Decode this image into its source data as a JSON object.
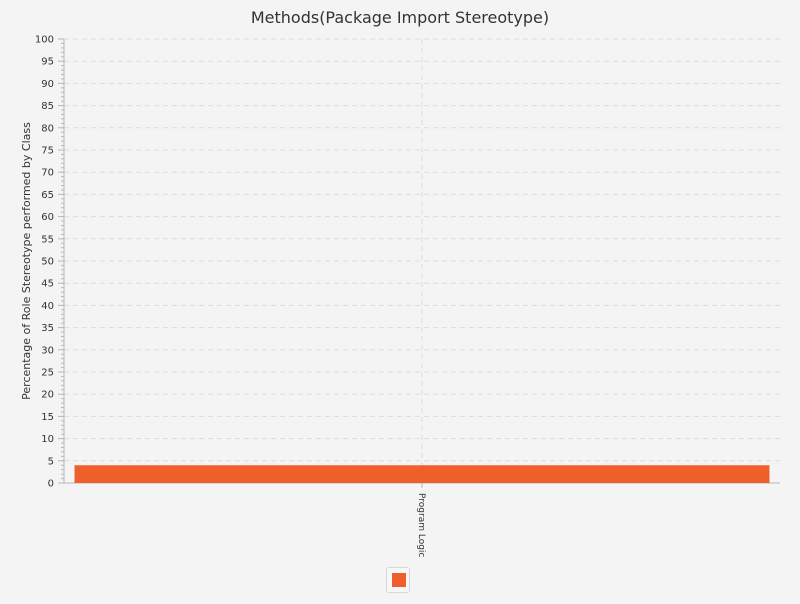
{
  "chart_data": {
    "type": "bar",
    "title": "Methods(Package Import Stereotype)",
    "xlabel": "",
    "ylabel": "Percentage of Role Stereotype performed by Class",
    "categories": [
      "Program Logic"
    ],
    "series": [
      {
        "values": [
          4
        ]
      }
    ],
    "ylim": [
      0,
      100
    ],
    "ytick_step": 5,
    "grid": true,
    "legend_position": "bottom",
    "colors": {
      "bar": "#ee5f2c",
      "grid": "#dcdcdc",
      "axis": "#b8b8b8",
      "background": "#f4f4f4"
    }
  }
}
